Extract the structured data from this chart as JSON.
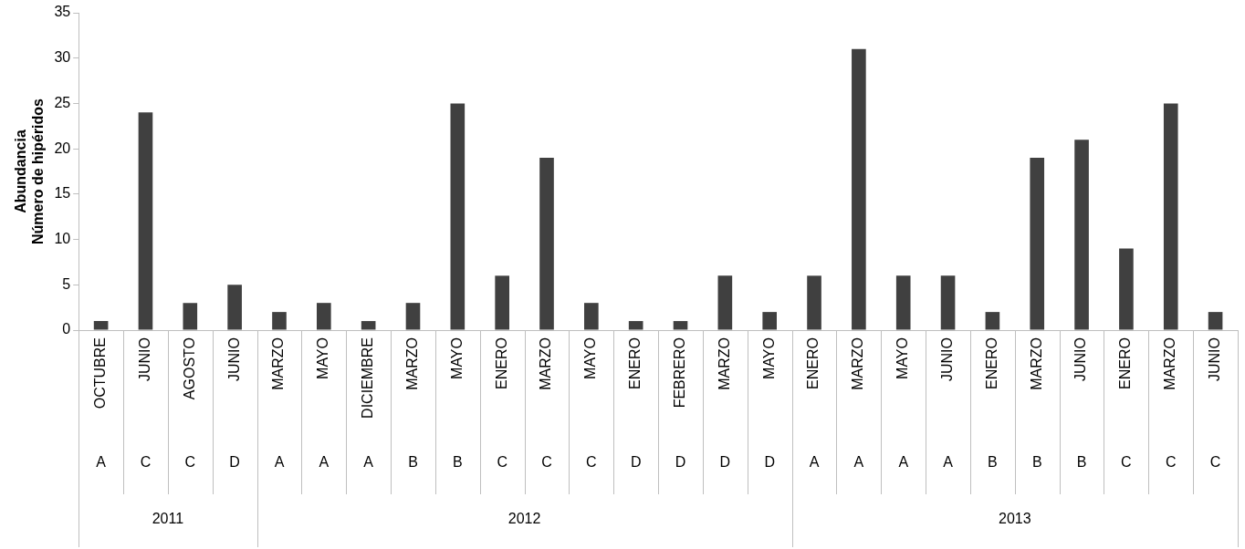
{
  "chart_data": {
    "type": "bar",
    "ylabel": "Abundancia\nNúmero de hipéridos",
    "categories": [
      "OCTUBRE",
      "JUNIO",
      "AGOSTO",
      "JUNIO",
      "MARZO",
      "MAYO",
      "DICIEMBRE",
      "MARZO",
      "MAYO",
      "ENERO",
      "MARZO",
      "MAYO",
      "ENERO",
      "FEBRERO",
      "MARZO",
      "MAYO",
      "ENERO",
      "MARZO",
      "MAYO",
      "JUNIO",
      "ENERO",
      "MARZO",
      "JUNIO",
      "ENERO",
      "MARZO",
      "JUNIO"
    ],
    "values": [
      1,
      24,
      3,
      5,
      2,
      3,
      1,
      3,
      25,
      6,
      19,
      3,
      1,
      1,
      6,
      2,
      6,
      31,
      6,
      6,
      2,
      19,
      21,
      9,
      25,
      2
    ],
    "color": "#404040",
    "ylim": [
      0,
      35
    ],
    "yticks": [
      0,
      5,
      10,
      15,
      20,
      25,
      30,
      35
    ],
    "grid": false,
    "annotations": [
      "A",
      "C",
      "C",
      "D",
      "A",
      "A",
      "A",
      "B",
      "B",
      "C",
      "C",
      "C",
      "D",
      "D",
      "D",
      "D",
      "A",
      "A",
      "A",
      "A",
      "B",
      "B",
      "B",
      "C",
      "C",
      "C",
      "2011",
      "2012",
      "2013"
    ]
  }
}
